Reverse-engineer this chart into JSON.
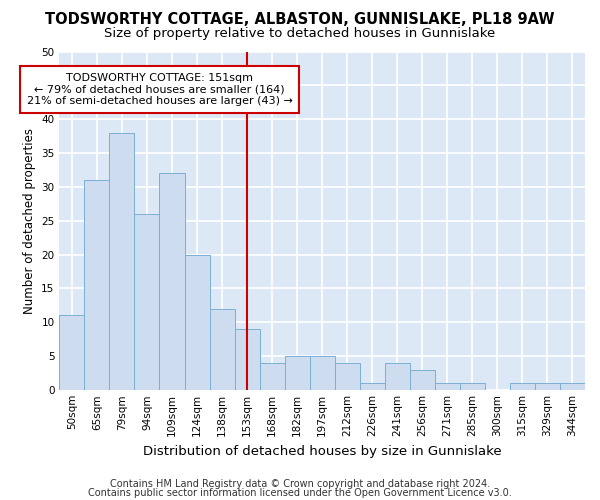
{
  "title": "TODSWORTHY COTTAGE, ALBASTON, GUNNISLAKE, PL18 9AW",
  "subtitle": "Size of property relative to detached houses in Gunnislake",
  "xlabel": "Distribution of detached houses by size in Gunnislake",
  "ylabel": "Number of detached properties",
  "categories": [
    "50sqm",
    "65sqm",
    "79sqm",
    "94sqm",
    "109sqm",
    "124sqm",
    "138sqm",
    "153sqm",
    "168sqm",
    "182sqm",
    "197sqm",
    "212sqm",
    "226sqm",
    "241sqm",
    "256sqm",
    "271sqm",
    "285sqm",
    "300sqm",
    "315sqm",
    "329sqm",
    "344sqm"
  ],
  "values": [
    11,
    31,
    38,
    26,
    32,
    20,
    12,
    9,
    4,
    5,
    5,
    4,
    1,
    4,
    3,
    1,
    1,
    0,
    1,
    1,
    1
  ],
  "bar_color": "#cddcee",
  "bar_edge_color": "#7aafd4",
  "bg_color": "#dce8f5",
  "grid_color": "#ffffff",
  "fig_bg_color": "#ffffff",
  "vline_color": "#cc0000",
  "vline_x_index": 7,
  "annotation_text": "TODSWORTHY COTTAGE: 151sqm\n← 79% of detached houses are smaller (164)\n21% of semi-detached houses are larger (43) →",
  "annotation_box_color": "#ffffff",
  "annotation_box_edge": "#cc0000",
  "footer1": "Contains HM Land Registry data © Crown copyright and database right 2024.",
  "footer2": "Contains public sector information licensed under the Open Government Licence v3.0.",
  "ylim": [
    0,
    50
  ],
  "title_fontsize": 10.5,
  "subtitle_fontsize": 9.5,
  "xlabel_fontsize": 9.5,
  "ylabel_fontsize": 8.5,
  "tick_fontsize": 7.5,
  "annotation_fontsize": 8,
  "footer_fontsize": 7
}
